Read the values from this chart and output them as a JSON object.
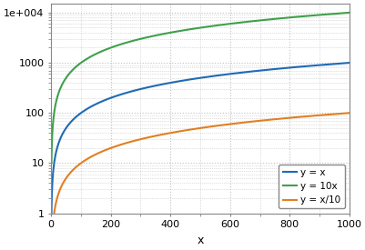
{
  "title": "",
  "xlabel": "x",
  "ylabel": "",
  "xlim": [
    1,
    1000
  ],
  "ylim": [
    1,
    15000
  ],
  "x_start": 1,
  "x_end": 1000,
  "n_points": 1000,
  "lines": [
    {
      "label": "y = x",
      "factor": 1.0,
      "power": 1.0,
      "color": "#1f6ab5",
      "lw": 1.5
    },
    {
      "label": "y = 10x",
      "factor": 10.0,
      "power": 1.0,
      "color": "#3fa04a",
      "lw": 1.5
    },
    {
      "label": "y = x/10",
      "factor": 0.1,
      "power": 1.0,
      "color": "#e08020",
      "lw": 1.5
    }
  ],
  "xticks": [
    0,
    200,
    400,
    600,
    800,
    1000
  ],
  "yticks": [
    1,
    10,
    100,
    1000,
    10000
  ],
  "ytick_labels": [
    "1",
    "10",
    "100",
    "1000",
    "1e+004"
  ],
  "grid_color": "#c0c0c0",
  "bg_color": "#ffffff",
  "legend_loc": "lower right",
  "legend_fontsize": 7.5,
  "tick_fontsize": 8
}
